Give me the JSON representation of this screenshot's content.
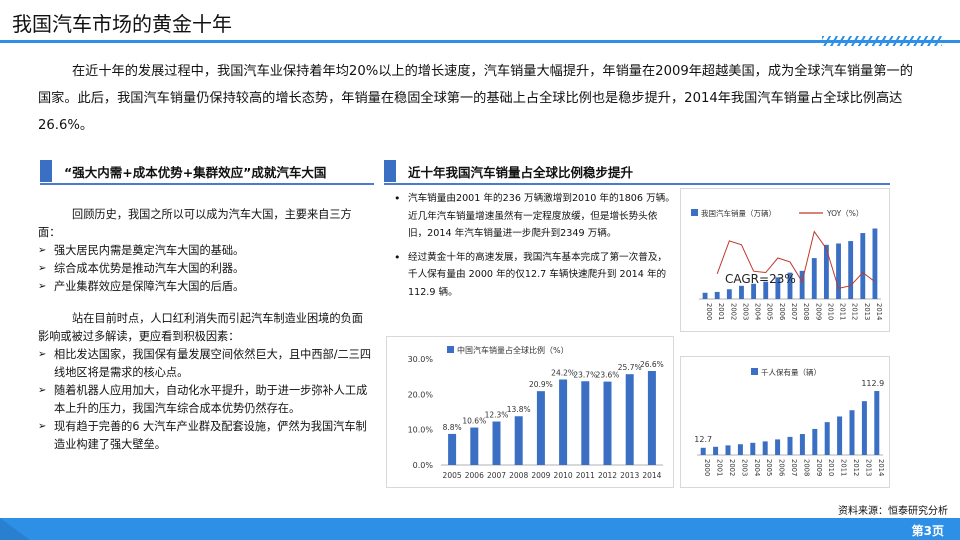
{
  "header": {
    "title": "我国汽车市场的黄金十年"
  },
  "intro": "在近十年的发展过程中，我国汽车业保持着年均20%以上的增长速度，汽车销量大幅提升，年销量在2009年超越美国，成为全球汽车销量第一的国家。此后，我国汽车销量仍保持较高的增长态势，年销量在稳固全球第一的基础上占全球比例也是稳步提升，2014年我国汽车销量占全球比例高达26.6%。",
  "left": {
    "heading": "“强大内需+成本优势+集群效应”成就汽车大国",
    "para1": "回顾历史，我国之所以可以成为汽车大国，主要来自三方面：",
    "bullets1": [
      "强大居民内需是奠定汽车大国的基础。",
      "综合成本优势是推动汽车大国的利器。",
      "产业集群效应是保障汽车大国的后盾。"
    ],
    "para2": "站在目前时点，人口红利消失而引起汽车制造业困境的负面影响或被过多解读，更应看到积极因素：",
    "bullets2": [
      "相比发达国家，我国保有量发展空间依然巨大，且中西部/二三四线地区将是需求的核心点。",
      "随着机器人应用加大，自动化水平提升，助于进一步弥补人工成本上升的压力，我国汽车综合成本优势仍然存在。",
      "现有趋于完善的6 大汽车产业群及配套设施，俨然为我国汽车制造业构建了强大壁垒。"
    ]
  },
  "right": {
    "heading": "近十年我国汽车销量占全球比例稳步提升",
    "bullets": [
      "汽车销量由2001 年的236 万辆激增到2010 年的1806 万辆。近几年汽车销量增速虽然有一定程度放缓，但是增长势头依旧，2014 年汽车销量进一步爬升到2349 万辆。",
      "经过黄金十年的高速发展，我国汽车基本完成了第一次普及，千人保有量由 2000 年的仅12.7 车辆快速爬升到 2014 年的112.9 辆。"
    ]
  },
  "chart_data": [
    {
      "type": "bar+line",
      "x": [
        "2000",
        "2001",
        "2002",
        "2003",
        "2004",
        "2005",
        "2006",
        "2007",
        "2008",
        "2009",
        "2010",
        "2011",
        "2012",
        "2013",
        "2014"
      ],
      "series": [
        {
          "name": "我国汽车销量（万辆）",
          "kind": "bar",
          "values": [
            208,
            236,
            325,
            439,
            507,
            576,
            722,
            879,
            938,
            1364,
            1806,
            1851,
            1931,
            2198,
            2349
          ]
        },
        {
          "name": "YOY（%）",
          "kind": "line",
          "values": [
            null,
            13,
            38,
            35,
            15,
            14,
            25,
            22,
            7,
            45,
            32,
            2,
            4,
            14,
            7
          ]
        }
      ],
      "annotation": "CAGR=23%",
      "colors": {
        "bar": "#3a6fc4",
        "line": "#c0392b"
      }
    },
    {
      "type": "bar",
      "title": "中国汽车销量占全球比例（%）",
      "categories": [
        "2005",
        "2006",
        "2007",
        "2008",
        "2009",
        "2010",
        "2011",
        "2012",
        "2013",
        "2014"
      ],
      "values": [
        8.8,
        10.6,
        12.3,
        13.8,
        20.9,
        24.2,
        23.7,
        23.6,
        25.7,
        26.6
      ],
      "data_labels": [
        "8.8%",
        "10.6%",
        "12.3%",
        "13.8%",
        "20.9%",
        "24.2%",
        "23.7%",
        "23.6%",
        "25.7%",
        "26.6%"
      ],
      "ytick_labels": [
        "0.0%",
        "10.0%",
        "20.0%",
        "30.0%"
      ],
      "ylim": [
        0,
        30
      ],
      "color": "#3a6fc4"
    },
    {
      "type": "bar",
      "series_name": "千人保有量（辆）",
      "categories": [
        "2000",
        "2001",
        "2002",
        "2003",
        "2004",
        "2005",
        "2006",
        "2007",
        "2008",
        "2009",
        "2010",
        "2011",
        "2012",
        "2013",
        "2014"
      ],
      "values": [
        12.7,
        14.5,
        17,
        19,
        21.5,
        24,
        27.5,
        32,
        37,
        46,
        58,
        68,
        79,
        95,
        112.9
      ],
      "labels": {
        "first": "12.7",
        "last": "112.9"
      },
      "color": "#3a6fc4"
    }
  ],
  "source": "资料来源：恒泰研究分析",
  "page": "第3页"
}
